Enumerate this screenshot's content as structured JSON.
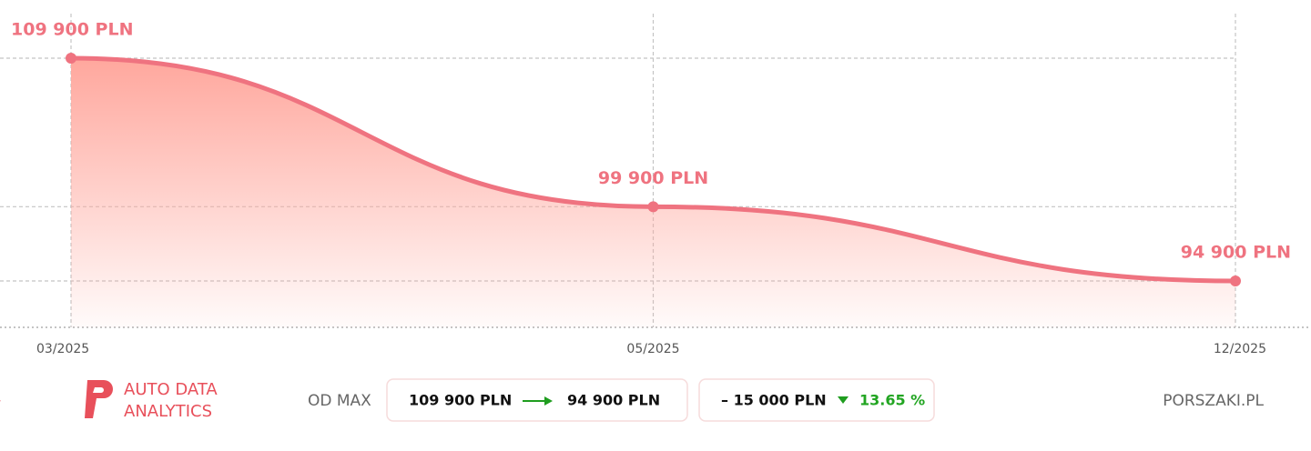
{
  "chart_data": {
    "type": "line",
    "categories": [
      "03/2025",
      "05/2025",
      "12/2025"
    ],
    "values": [
      109900,
      99900,
      94900
    ],
    "value_labels": [
      "109 900 PLN",
      "99 900 PLN",
      "94 900 PLN"
    ],
    "color": "#ef7380",
    "grid": true
  },
  "footer": {
    "brand": [
      "AUTO DATA",
      "ANALYTICS"
    ],
    "label": "OD MAX",
    "from": "109 900 PLN",
    "to": "94 900 PLN",
    "change": "– 15 000 PLN",
    "change_pct": "13.65 %",
    "site": "PORSZAKI.PL"
  }
}
